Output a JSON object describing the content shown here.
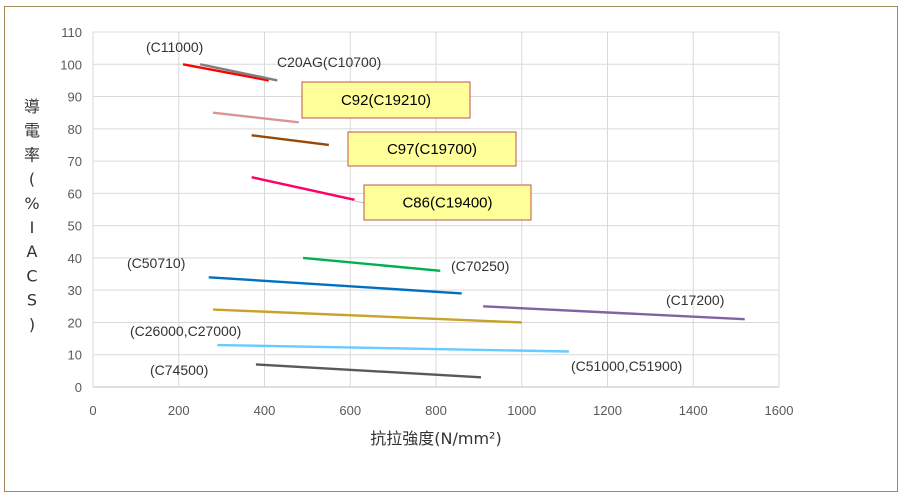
{
  "chart_data": {
    "type": "line",
    "title": "",
    "xlabel": "抗拉強度(N/mm²)",
    "ylabel": "導電率(%IACS)",
    "xlim": [
      0,
      1600
    ],
    "ylim": [
      0,
      110
    ],
    "x_ticks": [
      "0",
      "200",
      "400",
      "600",
      "800",
      "1000",
      "1200",
      "1400",
      "1600"
    ],
    "y_ticks": [
      "0",
      "10",
      "20",
      "30",
      "40",
      "50",
      "60",
      "70",
      "80",
      "90",
      "100",
      "110"
    ],
    "grid": true,
    "series": [
      {
        "name": "(C11000)",
        "color": "#ff0000",
        "x": [
          210,
          410
        ],
        "y": [
          100,
          95
        ],
        "label_style": "plain"
      },
      {
        "name": "C20AG(C10700)",
        "color": "#7f7f7f",
        "x": [
          250,
          430
        ],
        "y": [
          100,
          95
        ],
        "label_style": "plain"
      },
      {
        "name": "C92(C19210)",
        "color": "#d99594",
        "x": [
          280,
          480
        ],
        "y": [
          85,
          82
        ],
        "label_style": "box"
      },
      {
        "name": "C97(C19700)",
        "color": "#974806",
        "x": [
          370,
          550
        ],
        "y": [
          78,
          75
        ],
        "label_style": "box"
      },
      {
        "name": "C86(C19400)",
        "color": "#ff0066",
        "x": [
          370,
          610
        ],
        "y": [
          65,
          58
        ],
        "label_style": "box"
      },
      {
        "name": "(C70250)",
        "color": "#00b050",
        "x": [
          490,
          810
        ],
        "y": [
          40,
          36
        ],
        "label_style": "plain"
      },
      {
        "name": "(C50710)",
        "color": "#0070c0",
        "x": [
          270,
          860
        ],
        "y": [
          34,
          29
        ],
        "label_style": "plain"
      },
      {
        "name": "(C17200)",
        "color": "#8064a2",
        "x": [
          910,
          1520
        ],
        "y": [
          25,
          21
        ],
        "label_style": "plain"
      },
      {
        "name": "(C26000,C27000)",
        "color": "#c9a227",
        "x": [
          280,
          1000
        ],
        "y": [
          24,
          20
        ],
        "label_style": "plain"
      },
      {
        "name": "(C51000,C51900)",
        "color": "#66ccff",
        "x": [
          290,
          1110
        ],
        "y": [
          13,
          11
        ],
        "label_style": "plain"
      },
      {
        "name": "(C74500)",
        "color": "#595959",
        "x": [
          380,
          905
        ],
        "y": [
          7,
          3
        ],
        "label_style": "plain"
      }
    ]
  }
}
